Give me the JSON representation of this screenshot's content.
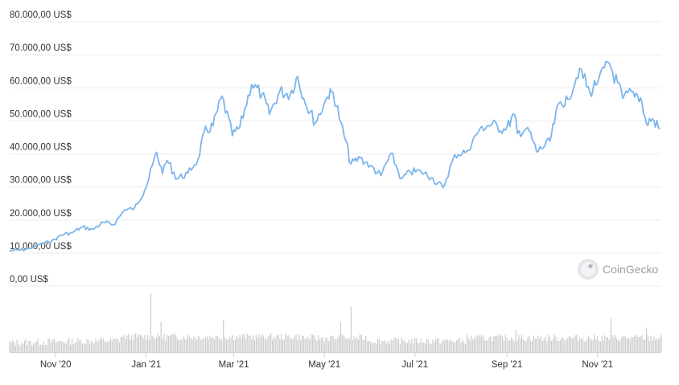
{
  "chart_data": {
    "type": "line",
    "title": "",
    "xlabel": "",
    "ylabel": "",
    "ylim": [
      0,
      80000
    ],
    "grid": true,
    "y_ticks": [
      {
        "value": 80000,
        "label": "80.000,00 US$"
      },
      {
        "value": 70000,
        "label": "70.000,00 US$"
      },
      {
        "value": 60000,
        "label": "60.000,00 US$"
      },
      {
        "value": 50000,
        "label": "50.000,00 US$"
      },
      {
        "value": 40000,
        "label": "40.000,00 US$"
      },
      {
        "value": 30000,
        "label": "30.000,00 US$"
      },
      {
        "value": 20000,
        "label": "20.000,00 US$"
      },
      {
        "value": 10000,
        "label": "10.000,00 US$"
      },
      {
        "value": 0,
        "label": "0,00 US$"
      }
    ],
    "x_range": [
      "2020-10-01",
      "2021-12-14"
    ],
    "x_ticks": [
      {
        "date": "2020-11-01",
        "label": "Nov '20"
      },
      {
        "date": "2021-01-01",
        "label": "Jan '21"
      },
      {
        "date": "2021-03-01",
        "label": "Mar '21"
      },
      {
        "date": "2021-05-01",
        "label": "May '21"
      },
      {
        "date": "2021-07-01",
        "label": "Jul '21"
      },
      {
        "date": "2021-09-01",
        "label": "Sep '21"
      },
      {
        "date": "2021-11-01",
        "label": "Nov '21"
      }
    ],
    "series": [
      {
        "color": "#7cb5ec",
        "points": [
          [
            "2020-10-01",
            10700
          ],
          [
            "2020-10-08",
            10900
          ],
          [
            "2020-10-15",
            11400
          ],
          [
            "2020-10-22",
            12900
          ],
          [
            "2020-10-29",
            13400
          ],
          [
            "2020-11-05",
            15500
          ],
          [
            "2020-11-12",
            16200
          ],
          [
            "2020-11-19",
            17900
          ],
          [
            "2020-11-26",
            17200
          ],
          [
            "2020-12-03",
            19300
          ],
          [
            "2020-12-10",
            18600
          ],
          [
            "2020-12-17",
            22800
          ],
          [
            "2020-12-24",
            23600
          ],
          [
            "2020-12-31",
            29000
          ],
          [
            "2021-01-03",
            33000
          ],
          [
            "2021-01-08",
            40500
          ],
          [
            "2021-01-12",
            34000
          ],
          [
            "2021-01-15",
            38000
          ],
          [
            "2021-01-22",
            32500
          ],
          [
            "2021-01-29",
            34200
          ],
          [
            "2021-02-05",
            38500
          ],
          [
            "2021-02-09",
            46500
          ],
          [
            "2021-02-15",
            48500
          ],
          [
            "2021-02-21",
            57500
          ],
          [
            "2021-02-28",
            45500
          ],
          [
            "2021-03-05",
            48000
          ],
          [
            "2021-03-13",
            61000
          ],
          [
            "2021-03-20",
            58000
          ],
          [
            "2021-03-25",
            52000
          ],
          [
            "2021-04-01",
            59000
          ],
          [
            "2021-04-08",
            58000
          ],
          [
            "2021-04-13",
            63500
          ],
          [
            "2021-04-18",
            55500
          ],
          [
            "2021-04-25",
            49500
          ],
          [
            "2021-05-03",
            57200
          ],
          [
            "2021-05-07",
            58500
          ],
          [
            "2021-05-12",
            49700
          ],
          [
            "2021-05-19",
            37000
          ],
          [
            "2021-05-25",
            38800
          ],
          [
            "2021-06-01",
            36500
          ],
          [
            "2021-06-08",
            33400
          ],
          [
            "2021-06-15",
            40200
          ],
          [
            "2021-06-22",
            32500
          ],
          [
            "2021-06-28",
            34500
          ],
          [
            "2021-07-05",
            34800
          ],
          [
            "2021-07-12",
            32800
          ],
          [
            "2021-07-20",
            29800
          ],
          [
            "2021-07-28",
            39800
          ],
          [
            "2021-08-05",
            40800
          ],
          [
            "2021-08-14",
            47800
          ],
          [
            "2021-08-22",
            49000
          ],
          [
            "2021-08-31",
            47200
          ],
          [
            "2021-09-06",
            52000
          ],
          [
            "2021-09-08",
            46200
          ],
          [
            "2021-09-15",
            48000
          ],
          [
            "2021-09-21",
            40600
          ],
          [
            "2021-09-30",
            43800
          ],
          [
            "2021-10-06",
            55300
          ],
          [
            "2021-10-12",
            56500
          ],
          [
            "2021-10-20",
            65900
          ],
          [
            "2021-10-27",
            58500
          ],
          [
            "2021-11-02",
            63000
          ],
          [
            "2021-11-09",
            67500
          ],
          [
            "2021-11-18",
            56800
          ],
          [
            "2021-11-25",
            58900
          ],
          [
            "2021-11-30",
            57000
          ],
          [
            "2021-12-04",
            49200
          ],
          [
            "2021-12-08",
            50600
          ],
          [
            "2021-12-13",
            47500
          ]
        ]
      }
    ],
    "volume": {
      "color": "#cccccc",
      "note": "relative daily volume bars",
      "spikes": [
        {
          "date": "2021-01-04",
          "value": 1.0
        },
        {
          "date": "2021-01-11",
          "value": 0.52
        },
        {
          "date": "2021-02-22",
          "value": 0.55
        },
        {
          "date": "2021-05-19",
          "value": 0.78
        },
        {
          "date": "2021-05-12",
          "value": 0.5
        },
        {
          "date": "2021-09-07",
          "value": 0.38
        },
        {
          "date": "2021-11-10",
          "value": 0.57
        },
        {
          "date": "2021-12-04",
          "value": 0.42
        }
      ]
    }
  },
  "watermark": {
    "text": "CoinGecko",
    "icon": "coingecko-logo-icon"
  }
}
